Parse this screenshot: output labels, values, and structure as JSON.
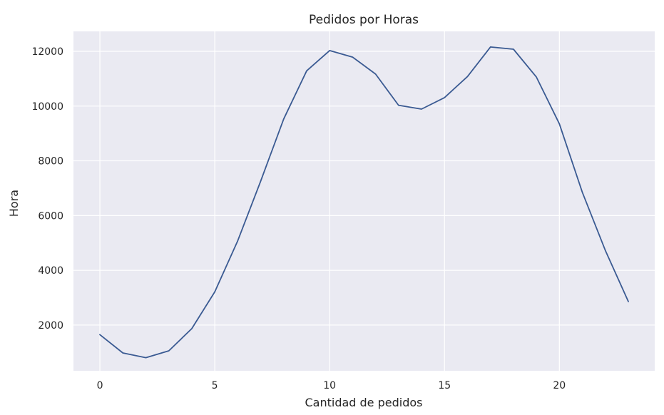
{
  "chart_data": {
    "type": "line",
    "title": "Pedidos por Horas",
    "xlabel": "Cantidad de pedidos",
    "ylabel": "Hora",
    "xlim": [
      -1.15,
      24.15
    ],
    "ylim": [
      330,
      12730
    ],
    "xticks": [
      0,
      5,
      10,
      15,
      20
    ],
    "yticks": [
      2000,
      4000,
      6000,
      8000,
      10000,
      12000
    ],
    "grid": true,
    "background": "#eaeaf2",
    "line_color": "#3a5a92",
    "series": [
      {
        "x": [
          0,
          1,
          2,
          3,
          4,
          5,
          6,
          7,
          8,
          9,
          10,
          11,
          12,
          13,
          14,
          15,
          16,
          17,
          18,
          19,
          20,
          21,
          22,
          23
        ],
        "values": [
          1650,
          980,
          810,
          1060,
          1870,
          3210,
          5080,
          7260,
          9530,
          11290,
          12030,
          11790,
          11170,
          10030,
          9890,
          10310,
          11080,
          12160,
          12080,
          11060,
          9350,
          6850,
          4730,
          2860
        ]
      }
    ]
  }
}
